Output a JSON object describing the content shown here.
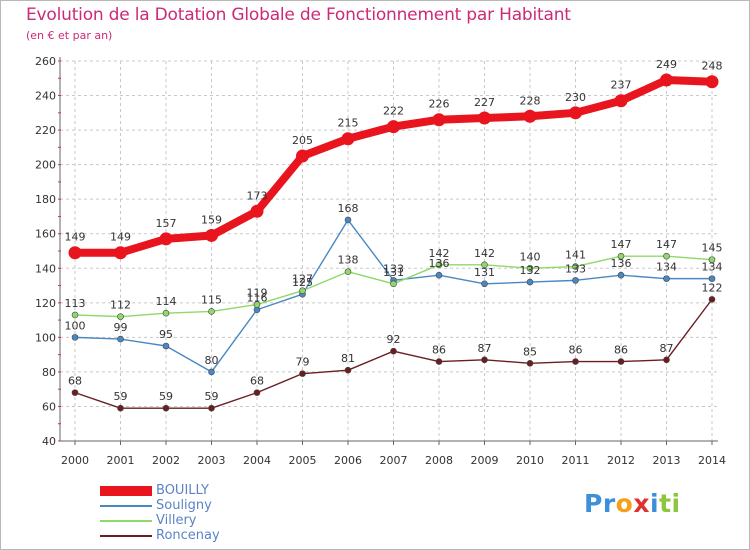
{
  "title": "Evolution de la Dotation Globale de Fonctionnement par Habitant",
  "subtitle": "(en € et par an)",
  "colors": {
    "BOUILLY": "#e8141e",
    "Souligny": "#4a88c2",
    "Villery": "#8fd86a",
    "Roncenay": "#6b1e22",
    "grid": "#c8c8c8",
    "title": "#cc2a77"
  },
  "chart_data": {
    "type": "line",
    "title": "Evolution de la Dotation Globale de Fonctionnement par Habitant",
    "subtitle": "(en € et par an)",
    "x": [
      "2000",
      "2001",
      "2002",
      "2003",
      "2004",
      "2005",
      "2006",
      "2007",
      "2008",
      "2009",
      "2010",
      "2011",
      "2012",
      "2013",
      "2014"
    ],
    "ylim": [
      40,
      260
    ],
    "yticks": [
      40,
      60,
      80,
      100,
      120,
      140,
      160,
      180,
      200,
      220,
      240,
      260
    ],
    "grid": true,
    "legend_position": "bottom-left",
    "series": [
      {
        "name": "BOUILLY",
        "color": "#e8141e",
        "values": [
          149,
          149,
          157,
          159,
          173,
          205,
          215,
          222,
          226,
          227,
          228,
          230,
          237,
          249,
          248
        ]
      },
      {
        "name": "Souligny",
        "color": "#4a88c2",
        "values": [
          100,
          99,
          95,
          80,
          116,
          125,
          168,
          133,
          136,
          131,
          132,
          133,
          136,
          134,
          134
        ]
      },
      {
        "name": "Villery",
        "color": "#8fd86a",
        "values": [
          113,
          112,
          114,
          115,
          119,
          127,
          138,
          131,
          142,
          142,
          140,
          141,
          147,
          147,
          145
        ]
      },
      {
        "name": "Roncenay",
        "color": "#6b1e22",
        "values": [
          68,
          59,
          59,
          59,
          68,
          79,
          81,
          92,
          86,
          87,
          85,
          86,
          86,
          87,
          122
        ]
      }
    ]
  },
  "legend": [
    {
      "label": "BOUILLY",
      "color": "#e8141e",
      "width": 10
    },
    {
      "label": "Souligny",
      "color": "#4a88c2",
      "width": 1.5
    },
    {
      "label": "Villery",
      "color": "#8fd86a",
      "width": 1.5
    },
    {
      "label": "Roncenay",
      "color": "#6b1e22",
      "width": 1.5
    }
  ],
  "logo": {
    "letters": [
      "P",
      "r",
      "o",
      "x",
      "i",
      "t",
      "i"
    ],
    "colors": [
      "#3d8fd8",
      "#3d8fd8",
      "#f4a018",
      "#e03030",
      "#3d8fd8",
      "#8cc63f",
      "#8cc63f"
    ]
  }
}
